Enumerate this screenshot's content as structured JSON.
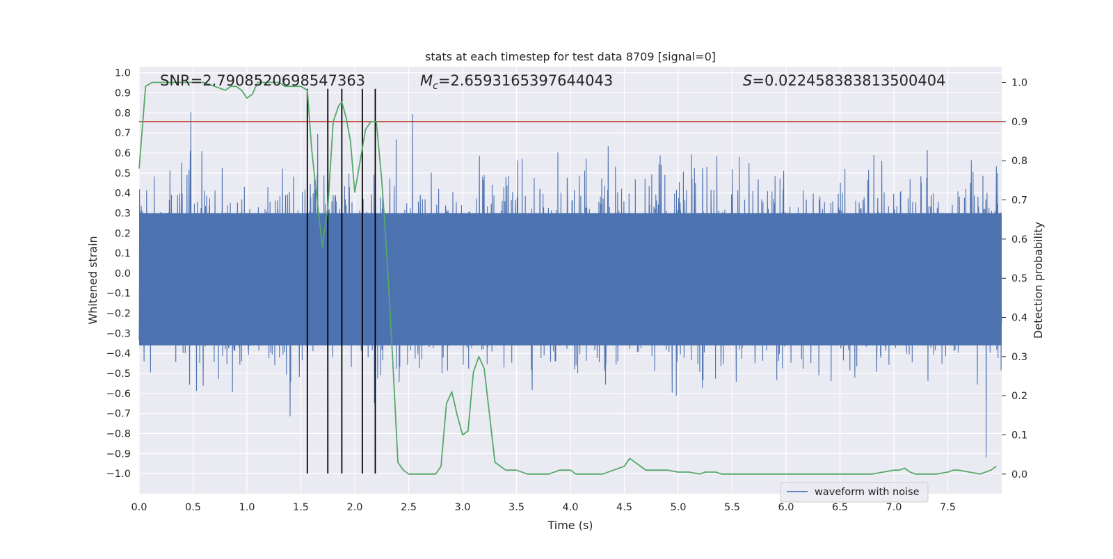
{
  "chart_data": {
    "type": "line",
    "title": "stats at each timestep for test data 8709 [signal=0]",
    "xlabel": "Time (s)",
    "ylabel": "Whitened strain",
    "ylabel_right": "Detection probability",
    "xlim": [
      0.0,
      8.0
    ],
    "ylim": [
      -1.1,
      1.03
    ],
    "ylim_right": [
      -0.05,
      1.04
    ],
    "x_ticks": [
      "0.0",
      "0.5",
      "1.0",
      "1.5",
      "2.0",
      "2.5",
      "3.0",
      "3.5",
      "4.0",
      "4.5",
      "5.0",
      "5.5",
      "6.0",
      "6.5",
      "7.0",
      "7.5"
    ],
    "y_ticks": [
      "1.0",
      "0.9",
      "0.8",
      "0.7",
      "0.6",
      "0.5",
      "0.4",
      "0.3",
      "0.2",
      "0.1",
      "0.0",
      "−0.1",
      "−0.2",
      "−0.3",
      "−0.4",
      "−0.5",
      "−0.6",
      "−0.7",
      "−0.8",
      "−0.9",
      "−1.0"
    ],
    "y_right_ticks": [
      "1.0",
      "0.9",
      "0.8",
      "0.7",
      "0.6",
      "0.5",
      "0.4",
      "0.3",
      "0.2",
      "0.1",
      "0.0"
    ],
    "annotations": {
      "snr": "SNR=2.7908520698547363",
      "mc_symbol": "M",
      "mc_sub": "c",
      "mc_value": "=2.6593165397644043",
      "s_symbol": "S",
      "s_value": "=0.022458383813500404"
    },
    "threshold": {
      "value": 0.9,
      "axis": "right",
      "color": "#c0392b"
    },
    "vertical_markers": [
      1.56,
      1.75,
      1.88,
      2.07,
      2.19
    ],
    "series": [
      {
        "name": "waveform with noise",
        "axis": "left",
        "color": "#4c72b0",
        "kind": "noise",
        "approx_amplitude": 0.92
      },
      {
        "axis": "right",
        "color": "#55a868",
        "x": [
          0.0,
          0.06,
          0.12,
          0.2,
          0.3,
          0.4,
          0.5,
          0.6,
          0.7,
          0.8,
          0.85,
          0.9,
          0.95,
          1.0,
          1.05,
          1.1,
          1.15,
          1.2,
          1.25,
          1.3,
          1.35,
          1.4,
          1.45,
          1.5,
          1.56,
          1.6,
          1.65,
          1.7,
          1.75,
          1.8,
          1.85,
          1.88,
          1.92,
          1.96,
          2.0,
          2.05,
          2.1,
          2.15,
          2.2,
          2.25,
          2.3,
          2.35,
          2.4,
          2.45,
          2.5,
          2.6,
          2.7,
          2.75,
          2.8,
          2.85,
          2.9,
          2.95,
          3.0,
          3.05,
          3.1,
          3.15,
          3.2,
          3.25,
          3.3,
          3.35,
          3.4,
          3.5,
          3.6,
          3.7,
          3.8,
          3.9,
          3.95,
          4.0,
          4.05,
          4.1,
          4.2,
          4.3,
          4.4,
          4.5,
          4.55,
          4.6,
          4.65,
          4.7,
          4.8,
          4.9,
          5.0,
          5.1,
          5.2,
          5.25,
          5.3,
          5.35,
          5.4,
          5.5,
          5.6,
          5.7,
          5.8,
          5.9,
          6.0,
          6.1,
          6.2,
          6.3,
          6.4,
          6.5,
          6.6,
          6.7,
          6.8,
          6.9,
          7.0,
          7.05,
          7.1,
          7.15,
          7.2,
          7.3,
          7.4,
          7.5,
          7.55,
          7.6,
          7.7,
          7.8,
          7.85,
          7.9,
          7.95
        ],
        "values": [
          0.78,
          0.99,
          1.0,
          1.0,
          1.0,
          1.0,
          1.0,
          1.0,
          0.99,
          0.98,
          0.99,
          0.99,
          0.98,
          0.96,
          0.97,
          1.0,
          1.0,
          1.0,
          1.0,
          1.0,
          0.99,
          0.99,
          0.99,
          0.99,
          0.98,
          0.83,
          0.7,
          0.58,
          0.68,
          0.9,
          0.94,
          0.95,
          0.91,
          0.85,
          0.72,
          0.8,
          0.88,
          0.9,
          0.9,
          0.75,
          0.55,
          0.3,
          0.03,
          0.01,
          0.0,
          0.0,
          0.0,
          0.0,
          0.02,
          0.18,
          0.21,
          0.15,
          0.1,
          0.11,
          0.26,
          0.3,
          0.27,
          0.15,
          0.03,
          0.02,
          0.01,
          0.01,
          0.0,
          0.0,
          0.0,
          0.01,
          0.01,
          0.01,
          0.0,
          0.0,
          0.0,
          0.0,
          0.01,
          0.02,
          0.04,
          0.03,
          0.02,
          0.01,
          0.01,
          0.01,
          0.005,
          0.005,
          0.0,
          0.005,
          0.005,
          0.005,
          0.0,
          0.0,
          0.0,
          0.0,
          0.0,
          0.0,
          0.0,
          0.0,
          0.0,
          0.0,
          0.0,
          0.0,
          0.0,
          0.0,
          0.0,
          0.005,
          0.01,
          0.01,
          0.015,
          0.005,
          0.0,
          0.0,
          0.0,
          0.005,
          0.01,
          0.01,
          0.005,
          0.0,
          0.005,
          0.01,
          0.02
        ]
      }
    ],
    "legend": {
      "position": "bottom-right"
    },
    "grid": true
  }
}
